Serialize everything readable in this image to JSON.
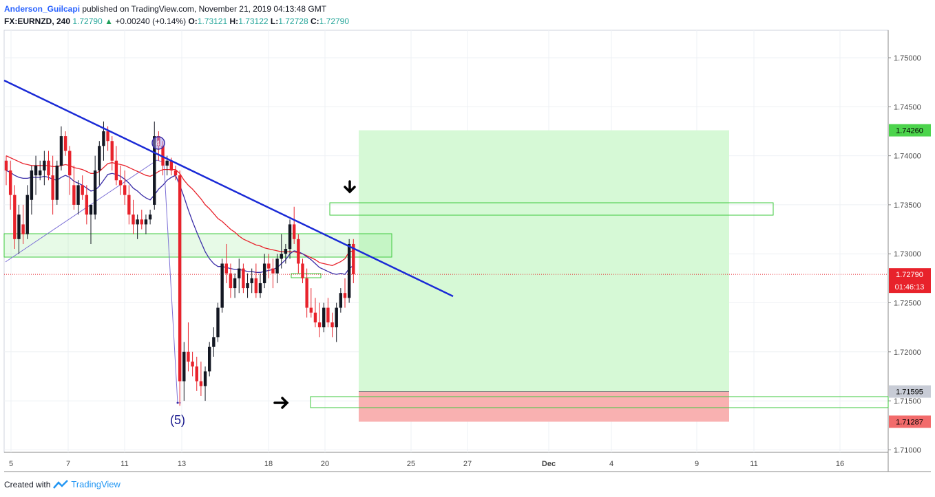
{
  "header": {
    "author": "Anderson_Guilcapi",
    "published": "published on TradingView.com, November 21, 2019 04:13:48 GMT",
    "symbol": "FX:EURNZD, 240",
    "last": "1.72790",
    "change": "+0.00240 (+0.14%)",
    "o_label": "O:",
    "o_value": "1.73121",
    "h_label": "H:",
    "h_value": "1.73122",
    "l_label": "L:",
    "l_value": "1.72728",
    "c_label": "C:",
    "c_value": "1.72790"
  },
  "footer": {
    "created_with": "Created with",
    "brand": "TradingView"
  },
  "colors": {
    "bull": "#131722",
    "bear": "#e8222b",
    "trendline": "#1a2ad6",
    "ema_fast": "#e8222b",
    "ema_slow": "#3b2ea8",
    "target_zone": "#d6f9d6",
    "stop_zone": "#f9b1b1",
    "zone_border": "#3ec93e"
  },
  "chart_data": {
    "type": "candlestick",
    "symbol": "FX:EURNZD",
    "timeframe": "240",
    "ylim": [
      1.7095,
      1.7525
    ],
    "y_ticks": [
      "1.75000",
      "1.74500",
      "1.74000",
      "1.73500",
      "1.73000",
      "1.72500",
      "1.72000",
      "1.71500",
      "1.71000"
    ],
    "x_ticks": [
      "5",
      "7",
      "11",
      "13",
      "18",
      "20",
      "25",
      "27",
      "Dec",
      "4",
      "9",
      "11",
      "16"
    ],
    "price_labels": {
      "target": "1.74260",
      "current": "1.72790",
      "countdown": "01:46:13",
      "entry": "1.71595",
      "stop": "1.71287"
    },
    "annotations": {
      "wave_label": "(5)",
      "wave_top": "4"
    },
    "candles": [
      [
        1.7395,
        1.74,
        1.737,
        1.7385
      ],
      [
        1.7385,
        1.7395,
        1.7345,
        1.736
      ],
      [
        1.736,
        1.737,
        1.7305,
        1.7315
      ],
      [
        1.7315,
        1.735,
        1.73,
        1.734
      ],
      [
        1.733,
        1.735,
        1.731,
        1.732
      ],
      [
        1.732,
        1.737,
        1.7315,
        1.736
      ],
      [
        1.7355,
        1.739,
        1.734,
        1.7385
      ],
      [
        1.738,
        1.74,
        1.736,
        1.739
      ],
      [
        1.738,
        1.7395,
        1.7375,
        1.7385
      ],
      [
        1.7385,
        1.7405,
        1.737,
        1.7395
      ],
      [
        1.7395,
        1.7405,
        1.7375,
        1.738
      ],
      [
        1.738,
        1.74,
        1.734,
        1.7355
      ],
      [
        1.7355,
        1.7395,
        1.735,
        1.739
      ],
      [
        1.739,
        1.743,
        1.7385,
        1.742
      ],
      [
        1.742,
        1.7425,
        1.74,
        1.7405
      ],
      [
        1.7405,
        1.741,
        1.736,
        1.738
      ],
      [
        1.737,
        1.739,
        1.7345,
        1.735
      ],
      [
        1.735,
        1.7375,
        1.734,
        1.737
      ],
      [
        1.737,
        1.738,
        1.7355,
        1.736
      ],
      [
        1.736,
        1.737,
        1.733,
        1.734
      ],
      [
        1.734,
        1.735,
        1.731,
        1.735
      ],
      [
        1.734,
        1.74,
        1.7335,
        1.7385
      ],
      [
        1.7385,
        1.7415,
        1.737,
        1.741
      ],
      [
        1.741,
        1.7435,
        1.7395,
        1.7425
      ],
      [
        1.7425,
        1.743,
        1.7405,
        1.7415
      ],
      [
        1.7415,
        1.742,
        1.7385,
        1.7395
      ],
      [
        1.7395,
        1.741,
        1.737,
        1.7375
      ],
      [
        1.7375,
        1.739,
        1.736,
        1.737
      ],
      [
        1.737,
        1.7385,
        1.735,
        1.736
      ],
      [
        1.736,
        1.737,
        1.733,
        1.734
      ],
      [
        1.734,
        1.7355,
        1.732,
        1.733
      ],
      [
        1.733,
        1.734,
        1.7315,
        1.7335
      ],
      [
        1.7335,
        1.7345,
        1.7325,
        1.733
      ],
      [
        1.733,
        1.734,
        1.732,
        1.7335
      ],
      [
        1.7335,
        1.7345,
        1.733,
        1.734
      ],
      [
        1.735,
        1.7435,
        1.7345,
        1.742
      ],
      [
        1.742,
        1.7425,
        1.7395,
        1.741
      ],
      [
        1.741,
        1.7415,
        1.738,
        1.739
      ],
      [
        1.739,
        1.74,
        1.738,
        1.7395
      ],
      [
        1.7395,
        1.7398,
        1.738,
        1.7385
      ],
      [
        1.7385,
        1.739,
        1.7375,
        1.738
      ],
      [
        1.738,
        1.7385,
        1.7145,
        1.717
      ],
      [
        1.717,
        1.721,
        1.715,
        1.72
      ],
      [
        1.72,
        1.723,
        1.718,
        1.719
      ],
      [
        1.719,
        1.72,
        1.7175,
        1.7185
      ],
      [
        1.7185,
        1.7195,
        1.716,
        1.717
      ],
      [
        1.717,
        1.719,
        1.7155,
        1.7165
      ],
      [
        1.7165,
        1.7185,
        1.715,
        1.718
      ],
      [
        1.718,
        1.721,
        1.7175,
        1.7205
      ],
      [
        1.7205,
        1.7225,
        1.7195,
        1.7215
      ],
      [
        1.7215,
        1.725,
        1.721,
        1.7245
      ],
      [
        1.7245,
        1.7295,
        1.724,
        1.729
      ],
      [
        1.729,
        1.731,
        1.727,
        1.728
      ],
      [
        1.728,
        1.729,
        1.7255,
        1.7265
      ],
      [
        1.7265,
        1.728,
        1.7255,
        1.7275
      ],
      [
        1.7275,
        1.7295,
        1.726,
        1.7285
      ],
      [
        1.7285,
        1.729,
        1.726,
        1.7265
      ],
      [
        1.7265,
        1.728,
        1.7255,
        1.727
      ],
      [
        1.727,
        1.7285,
        1.726,
        1.7275
      ],
      [
        1.7275,
        1.729,
        1.7255,
        1.726
      ],
      [
        1.726,
        1.728,
        1.7255,
        1.727
      ],
      [
        1.727,
        1.73,
        1.7265,
        1.729
      ],
      [
        1.729,
        1.73,
        1.7275,
        1.7285
      ],
      [
        1.7285,
        1.7295,
        1.7265,
        1.728
      ],
      [
        1.728,
        1.73,
        1.727,
        1.7295
      ],
      [
        1.7295,
        1.732,
        1.7285,
        1.73
      ],
      [
        1.73,
        1.731,
        1.729,
        1.7305
      ],
      [
        1.7305,
        1.7335,
        1.7295,
        1.733
      ],
      [
        1.733,
        1.7348,
        1.731,
        1.7315
      ],
      [
        1.7315,
        1.732,
        1.728,
        1.729
      ],
      [
        1.729,
        1.7295,
        1.727,
        1.7275
      ],
      [
        1.7275,
        1.7285,
        1.7235,
        1.7245
      ],
      [
        1.7245,
        1.7265,
        1.7235,
        1.724
      ],
      [
        1.724,
        1.7255,
        1.7225,
        1.723
      ],
      [
        1.723,
        1.725,
        1.7215,
        1.7225
      ],
      [
        1.7225,
        1.725,
        1.722,
        1.7245
      ],
      [
        1.7245,
        1.7255,
        1.7225,
        1.723
      ],
      [
        1.723,
        1.724,
        1.7215,
        1.7225
      ],
      [
        1.7225,
        1.725,
        1.721,
        1.7245
      ],
      [
        1.7245,
        1.7265,
        1.724,
        1.726
      ],
      [
        1.726,
        1.7275,
        1.7245,
        1.7255
      ],
      [
        1.7255,
        1.7315,
        1.725,
        1.731
      ],
      [
        1.731,
        1.7315,
        1.727,
        1.7279
      ]
    ],
    "ema_fast": [
      1.74,
      1.7398,
      1.7396,
      1.7394,
      1.7392,
      1.7391,
      1.739,
      1.739,
      1.739,
      1.739,
      1.739,
      1.7389,
      1.7389,
      1.739,
      1.7391,
      1.739,
      1.7388,
      1.7387,
      1.7386,
      1.7384,
      1.7382,
      1.7382,
      1.7384,
      1.7388,
      1.7392,
      1.7393,
      1.7392,
      1.7391,
      1.739,
      1.7388,
      1.7386,
      1.7384,
      1.7382,
      1.738,
      1.7379,
      1.7381,
      1.7384,
      1.7386,
      1.7386,
      1.7386,
      1.7386,
      1.7382,
      1.7375,
      1.737,
      1.7366,
      1.7361,
      1.7356,
      1.735,
      1.7346,
      1.7341,
      1.7336,
      1.7333,
      1.7329,
      1.7325,
      1.7322,
      1.7318,
      1.7315,
      1.7313,
      1.7311,
      1.7309,
      1.7308,
      1.7306,
      1.7305,
      1.7304,
      1.7303,
      1.7302,
      1.7302,
      1.7302,
      1.7302,
      1.7301,
      1.73,
      1.7298,
      1.7296,
      1.7294,
      1.7291,
      1.729,
      1.7289,
      1.7288,
      1.729,
      1.7292,
      1.7295,
      1.7302,
      1.7303
    ],
    "ema_slow": [
      1.7385,
      1.7383,
      1.738,
      1.7378,
      1.7377,
      1.7377,
      1.7378,
      1.7378,
      1.7378,
      1.7379,
      1.7378,
      1.7376,
      1.7375,
      1.7378,
      1.738,
      1.7378,
      1.7374,
      1.7372,
      1.737,
      1.7367,
      1.7364,
      1.7365,
      1.7369,
      1.7375,
      1.7381,
      1.7382,
      1.7381,
      1.7379,
      1.7376,
      1.7372,
      1.7367,
      1.7364,
      1.736,
      1.7357,
      1.7355,
      1.736,
      1.7366,
      1.737,
      1.7375,
      1.7378,
      1.738,
      1.737,
      1.7358,
      1.7345,
      1.7333,
      1.7322,
      1.7312,
      1.7302,
      1.7295,
      1.729,
      1.7287,
      1.7287,
      1.7286,
      1.7285,
      1.7284,
      1.7284,
      1.7283,
      1.7282,
      1.7282,
      1.7281,
      1.7281,
      1.7282,
      1.7283,
      1.7284,
      1.7286,
      1.729,
      1.7294,
      1.73,
      1.7303,
      1.7302,
      1.73,
      1.7297,
      1.7294,
      1.729,
      1.7286,
      1.7284,
      1.7282,
      1.728,
      1.7279,
      1.728,
      1.7279,
      1.7285,
      1.7288
    ]
  }
}
